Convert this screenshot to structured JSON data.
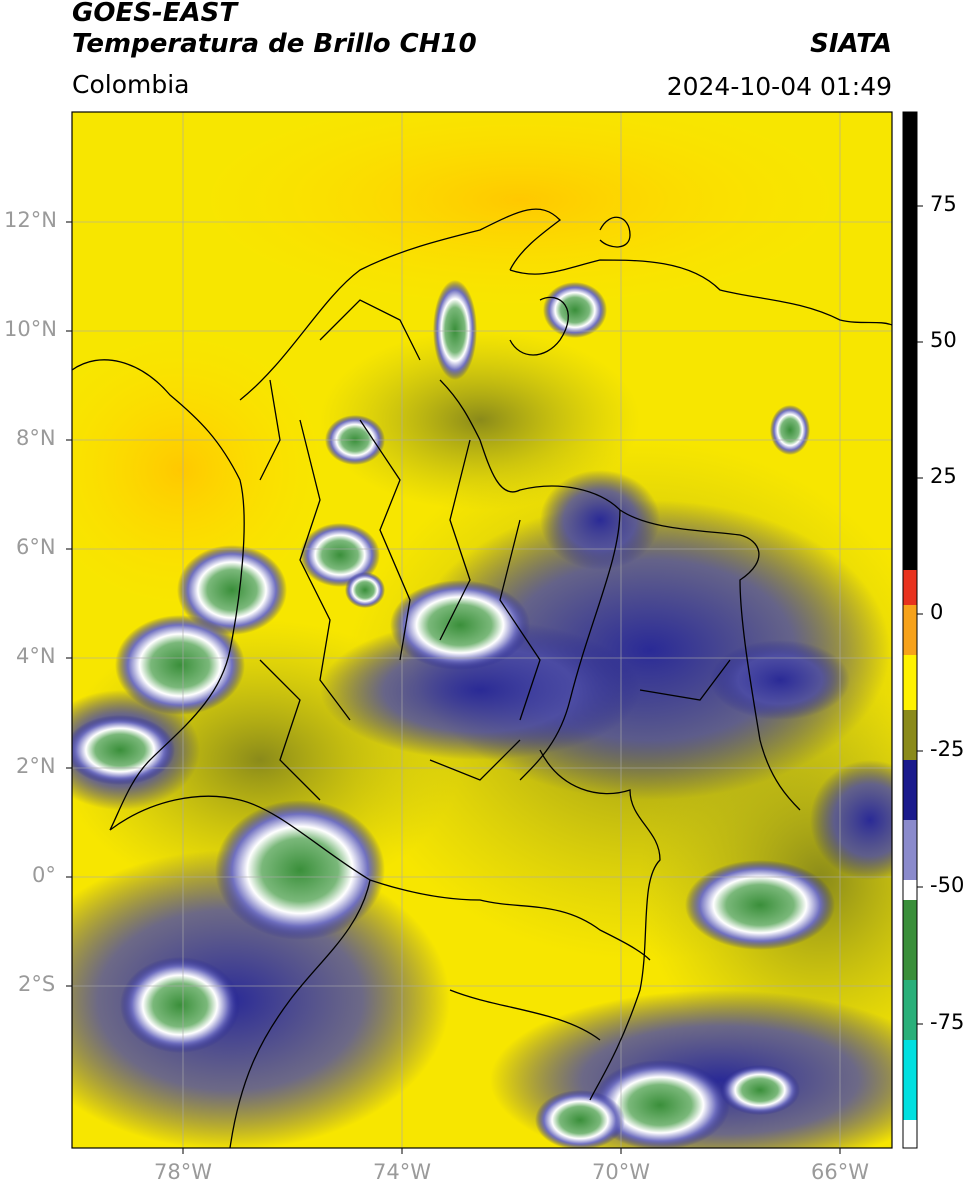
{
  "header": {
    "satellite": "GOES-EAST",
    "product": "Temperatura de Brillo CH10",
    "org": "SIATA",
    "region": "Colombia",
    "datetime": "2024-10-04 01:49"
  },
  "map": {
    "lon_range": [
      -80,
      -65
    ],
    "lat_range": [
      -5,
      14
    ],
    "lat_ticks": [
      "12°N",
      "10°N",
      "8°N",
      "6°N",
      "4°N",
      "2°N",
      "0°",
      "2°S"
    ],
    "lon_ticks": [
      "78°W",
      "74°W",
      "70°W",
      "66°W"
    ]
  },
  "colorbar": {
    "range": [
      -95,
      90
    ],
    "ticks": [
      "75",
      "50",
      "25",
      "0",
      "-25",
      "-50",
      "-75"
    ],
    "colors": {
      "black": "#000000",
      "red": "#e8321e",
      "orange": "#f7a21b",
      "yellow": "#fff200",
      "olive": "#8a8a1a",
      "navy": "#1a1a8c",
      "white": "#ffffff",
      "green": "#3a8f3a",
      "cyan": "#00e0e0"
    }
  }
}
